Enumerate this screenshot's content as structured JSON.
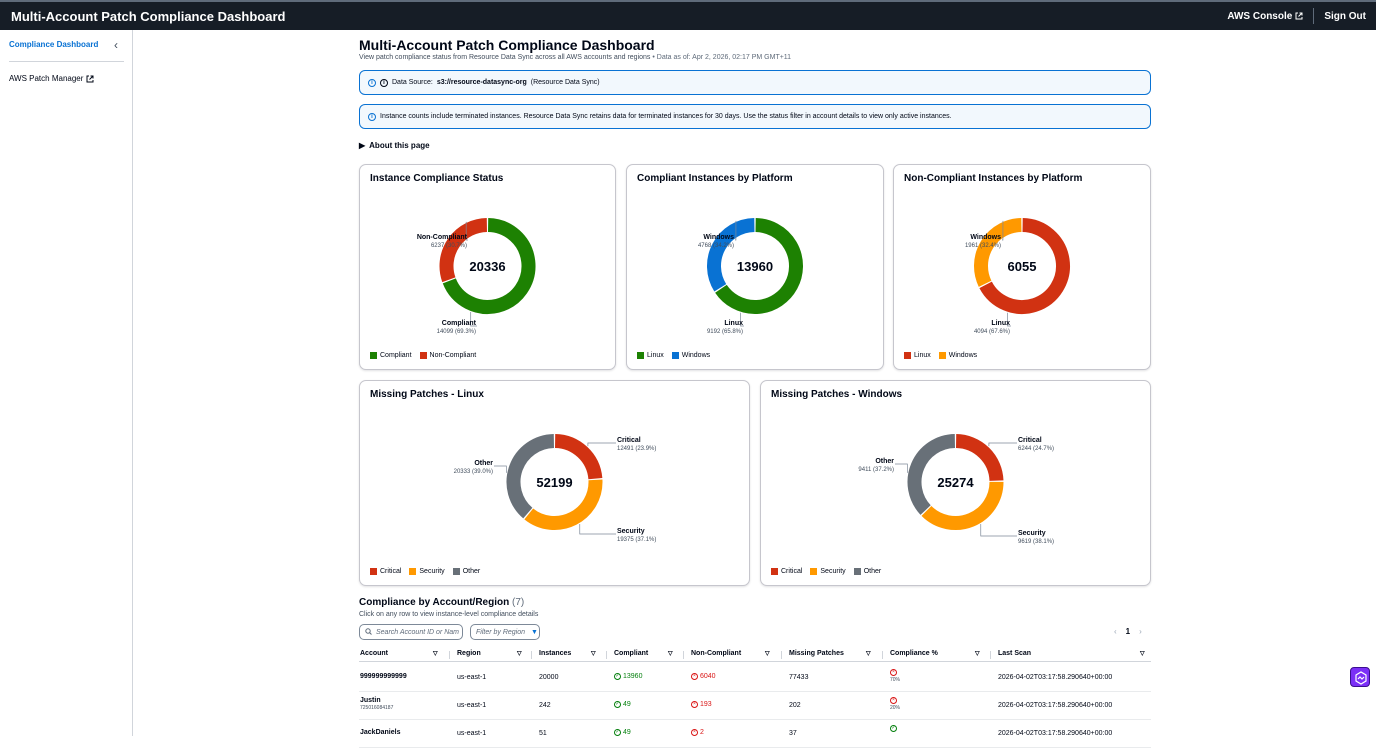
{
  "topbar": {
    "title": "Multi-Account Patch Compliance Dashboard",
    "console_label": "AWS Console",
    "signout_label": "Sign Out"
  },
  "sidebar": {
    "active_item": "Compliance Dashboard",
    "link_item": "AWS Patch Manager"
  },
  "header": {
    "title": "Multi-Account Patch Compliance Dashboard",
    "subtitle": "View patch compliance status from Resource Data Sync across all AWS accounts and regions",
    "data_as_of": "• Data as of: Apr 2, 2026, 02:17 PM GMT+11"
  },
  "alerts": {
    "source_prefix": "Data Source:",
    "source_path": "s3://resource-datasync-org",
    "source_suffix": "(Resource Data Sync)",
    "terminated_note": "Instance counts include terminated instances. Resource Data Sync retains data for terminated instances for 30 days. Use the status filter in account details to view only active instances."
  },
  "about_label": "About this page",
  "colors": {
    "green": "#1d8102",
    "red": "#d13212",
    "blue": "#0972d3",
    "orange": "#ff9900",
    "grey": "#687078"
  },
  "charts": {
    "status": {
      "title": "Instance Compliance Status",
      "total": "20336",
      "seg1": {
        "name": "Compliant",
        "detail": "14099 (69.3%)",
        "value": 14099,
        "color": "#1d8102"
      },
      "seg2": {
        "name": "Non-Compliant",
        "detail": "6237 (30.7%)",
        "value": 6237,
        "color": "#d13212"
      },
      "legend": [
        "Compliant",
        "Non-Compliant"
      ]
    },
    "compliant_platform": {
      "title": "Compliant Instances by Platform",
      "total": "13960",
      "seg1": {
        "name": "Linux",
        "detail": "9192 (65.8%)",
        "value": 9192,
        "color": "#1d8102"
      },
      "seg2": {
        "name": "Windows",
        "detail": "4768 (34.2%)",
        "value": 4768,
        "color": "#0972d3"
      },
      "legend": [
        "Linux",
        "Windows"
      ]
    },
    "noncompliant_platform": {
      "title": "Non-Compliant Instances by Platform",
      "total": "6055",
      "seg1": {
        "name": "Linux",
        "detail": "4094 (67.6%)",
        "value": 4094,
        "color": "#d13212"
      },
      "seg2": {
        "name": "Windows",
        "detail": "1961 (32.4%)",
        "value": 1961,
        "color": "#ff9900"
      },
      "legend": [
        "Linux",
        "Windows"
      ]
    },
    "missing_linux": {
      "title": "Missing Patches - Linux",
      "total": "52199",
      "critical": {
        "name": "Critical",
        "detail": "12491 (23.9%)",
        "value": 12491,
        "color": "#d13212"
      },
      "security": {
        "name": "Security",
        "detail": "19375 (37.1%)",
        "value": 19375,
        "color": "#ff9900"
      },
      "other": {
        "name": "Other",
        "detail": "20333 (39.0%)",
        "value": 20333,
        "color": "#687078"
      },
      "legend": [
        "Critical",
        "Security",
        "Other"
      ]
    },
    "missing_windows": {
      "title": "Missing Patches - Windows",
      "total": "25274",
      "critical": {
        "name": "Critical",
        "detail": "6244 (24.7%)",
        "value": 6244,
        "color": "#d13212"
      },
      "security": {
        "name": "Security",
        "detail": "9619 (38.1%)",
        "value": 9619,
        "color": "#ff9900"
      },
      "other": {
        "name": "Other",
        "detail": "9411 (37.2%)",
        "value": 9411,
        "color": "#687078"
      },
      "legend": [
        "Critical",
        "Security",
        "Other"
      ]
    }
  },
  "table": {
    "title": "Compliance by Account/Region",
    "count": "(7)",
    "subtitle": "Click on any row to view instance-level compliance details",
    "search_placeholder": "Search Account ID or Nam",
    "filter_label": "Filter by Region",
    "page": "1",
    "columns": [
      "Account",
      "Region",
      "Instances",
      "Compliant",
      "Non-Compliant",
      "Missing Patches",
      "Compliance %",
      "Last Scan"
    ],
    "rows": [
      {
        "account": "999999999999",
        "account_id": "",
        "region": "us-east-1",
        "instances": "20000",
        "compliant": "13960",
        "noncompliant": "6040",
        "missing": "77433",
        "pct": "70%",
        "pct_ok": false,
        "last_scan": "2026-04-02T03:17:58.290640+00:00"
      },
      {
        "account": "Justin",
        "account_id": "725016084187",
        "region": "us-east-1",
        "instances": "242",
        "compliant": "49",
        "noncompliant": "193",
        "missing": "202",
        "pct": "20%",
        "pct_ok": false,
        "last_scan": "2026-04-02T03:17:58.290640+00:00"
      },
      {
        "account": "JackDaniels",
        "account_id": "",
        "region": "us-east-1",
        "instances": "51",
        "compliant": "49",
        "noncompliant": "2",
        "missing": "37",
        "pct": "",
        "pct_ok": true,
        "last_scan": "2026-04-02T03:17:58.290640+00:00"
      }
    ]
  }
}
